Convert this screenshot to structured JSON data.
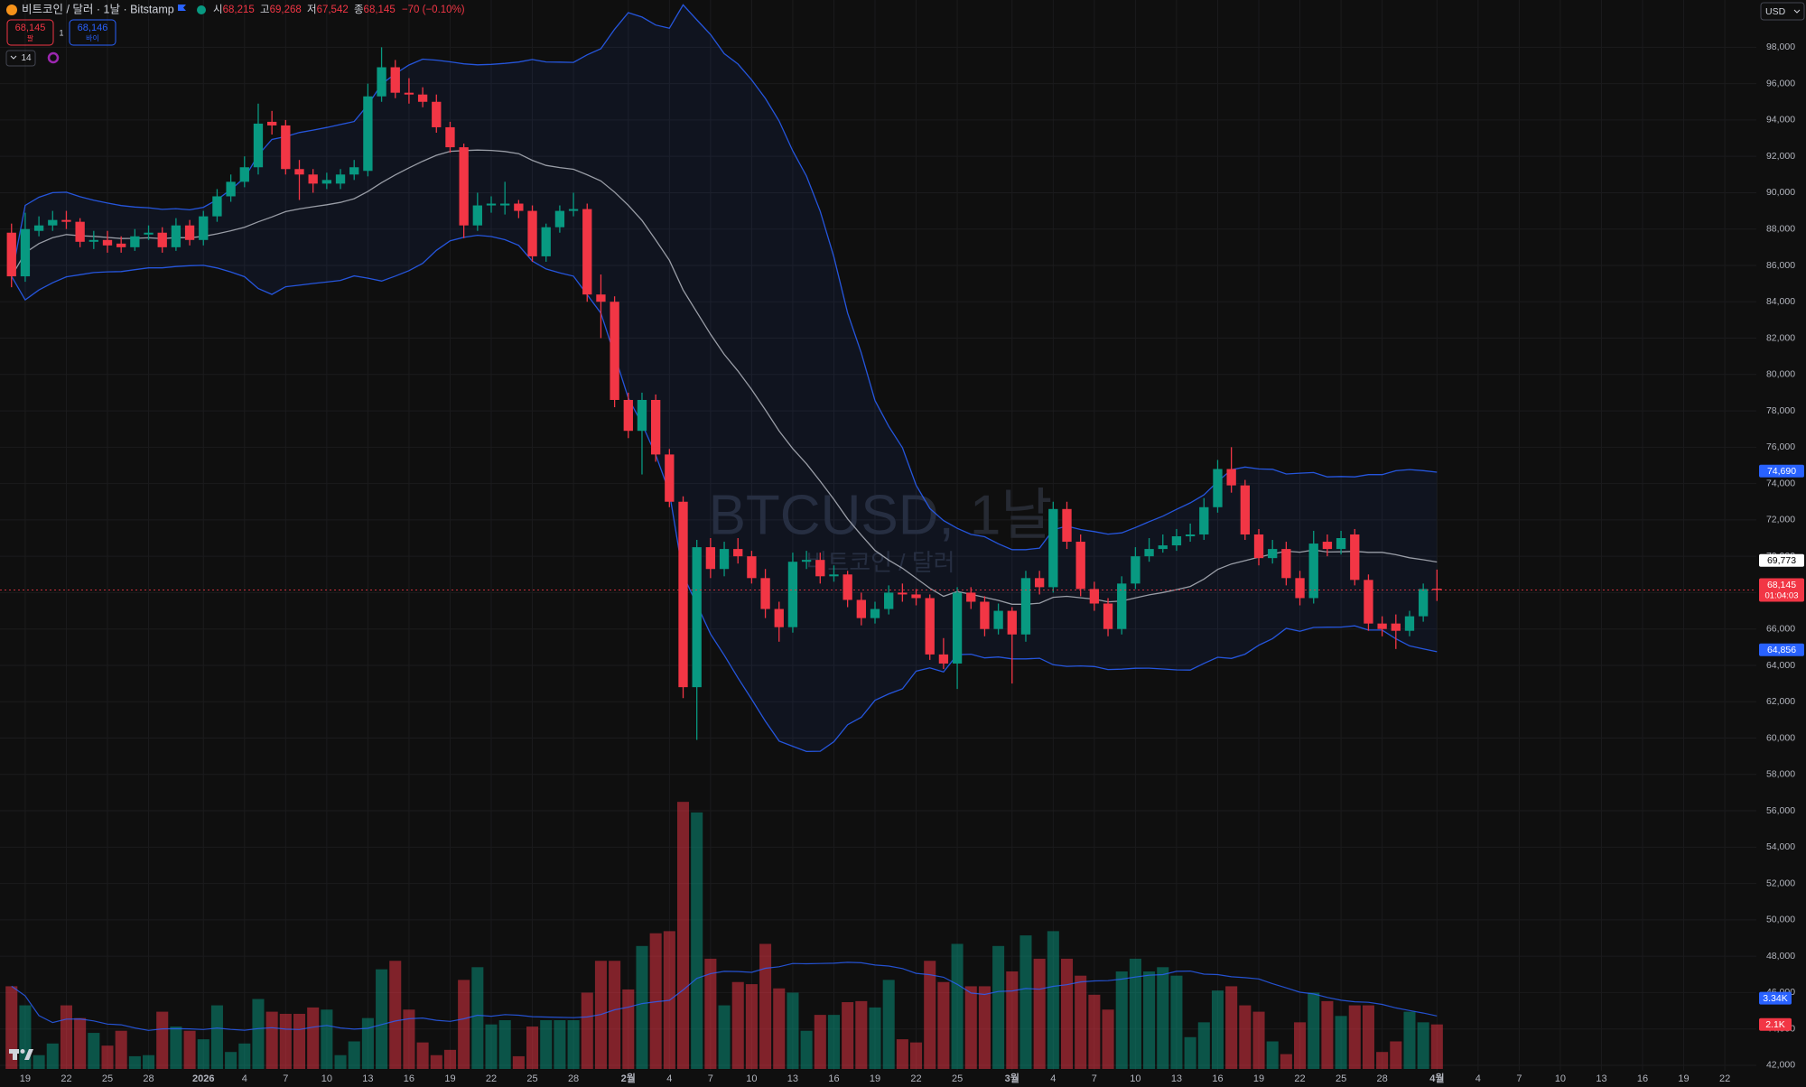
{
  "header": {
    "symbol": "비트코인 / 달러 · 1날 · Bitstamp",
    "ohlc": [
      {
        "key": "시",
        "value": "68,215"
      },
      {
        "key": "고",
        "value": "69,268"
      },
      {
        "key": "저",
        "value": "67,542"
      },
      {
        "key": "종",
        "value": "68,145"
      }
    ],
    "change": "−70 (−0.10%)",
    "sell": {
      "price": "68,145",
      "label": "팔"
    },
    "qty": "1",
    "buy": {
      "price": "68,146",
      "label": "바이"
    },
    "indicators": "14",
    "currency": "USD"
  },
  "watermark": {
    "title": "BTCUSD, 1날",
    "subtitle": "비트코인 / 달러"
  },
  "chart_data": {
    "type": "candlestick",
    "up_color": "#089981",
    "down_color": "#f23645",
    "grid": true,
    "x": [
      0,
      1,
      2,
      3,
      4,
      5,
      6,
      7,
      8,
      9,
      10,
      11,
      12,
      13,
      14,
      15,
      16,
      17,
      18,
      19,
      20,
      21,
      22,
      23,
      24,
      25,
      26,
      27,
      28,
      29,
      30,
      31,
      32,
      33,
      34,
      35,
      36,
      37,
      38,
      39,
      40,
      41,
      42,
      43,
      44,
      45,
      46,
      47,
      48,
      49,
      50,
      51,
      52,
      53,
      54,
      55,
      56,
      57,
      58,
      59,
      60,
      61,
      62,
      63,
      64,
      65,
      66,
      67,
      68,
      69,
      70,
      71,
      72,
      73,
      74,
      75,
      76,
      77,
      78,
      79,
      80,
      81,
      82,
      83,
      84,
      85,
      86,
      87,
      88,
      89,
      90,
      91,
      92,
      93,
      94,
      95,
      96,
      97,
      98,
      99,
      100,
      101,
      102,
      103,
      104
    ],
    "open": [
      87800,
      85400,
      87900,
      88200,
      88500,
      88400,
      87300,
      87400,
      87200,
      87000,
      87700,
      87800,
      87000,
      88200,
      87400,
      88700,
      89800,
      90600,
      91400,
      93900,
      93700,
      91300,
      91000,
      90500,
      90500,
      91000,
      91200,
      95300,
      96900,
      95500,
      95400,
      95000,
      93600,
      92500,
      88200,
      89300,
      89300,
      89400,
      89000,
      86500,
      88100,
      89000,
      89100,
      84400,
      84000,
      78600,
      76900,
      78600,
      75600,
      73000,
      62800,
      70500,
      69300,
      70400,
      70000,
      68800,
      67100,
      66100,
      69700,
      69800,
      68900,
      69000,
      67600,
      66600,
      67100,
      68000,
      67900,
      67700,
      64600,
      64100,
      68000,
      67500,
      66000,
      67000,
      65700,
      68800,
      68300,
      72600,
      70800,
      68200,
      67400,
      66000,
      68500,
      70000,
      70400,
      70600,
      71100,
      71200,
      72700,
      74800,
      73900,
      71200,
      69900,
      70400,
      68800,
      67700,
      70800,
      70400,
      71200,
      68700,
      66300,
      66300,
      65900,
      66700,
      68215
    ],
    "high": [
      88300,
      88900,
      88700,
      89000,
      89000,
      88600,
      87900,
      87900,
      87600,
      88000,
      88200,
      88100,
      88600,
      88500,
      89000,
      90200,
      91000,
      92000,
      94900,
      94500,
      94000,
      91800,
      91300,
      91100,
      91300,
      91800,
      96000,
      98000,
      97300,
      96300,
      95800,
      95400,
      93900,
      92700,
      90000,
      89800,
      90600,
      89600,
      89300,
      88300,
      89300,
      90000,
      89400,
      85500,
      84300,
      79000,
      79000,
      78900,
      75900,
      73300,
      70900,
      71000,
      70800,
      71000,
      70300,
      69300,
      67500,
      70200,
      70300,
      70200,
      69500,
      69200,
      68000,
      67500,
      68400,
      68500,
      68200,
      67900,
      65500,
      68300,
      68300,
      67800,
      67400,
      67200,
      69200,
      69200,
      73000,
      73000,
      71200,
      68600,
      67700,
      68900,
      70500,
      71000,
      71200,
      71500,
      71800,
      73200,
      75300,
      76000,
      74200,
      71500,
      70900,
      70800,
      69200,
      71400,
      71200,
      71400,
      71500,
      69000,
      66700,
      66800,
      67000,
      68500,
      69268
    ],
    "low": [
      84800,
      85100,
      87600,
      87900,
      88000,
      87000,
      86900,
      86700,
      86700,
      86800,
      87400,
      86700,
      86800,
      87100,
      87100,
      88400,
      89500,
      90300,
      91000,
      93200,
      91000,
      89600,
      90000,
      90200,
      90200,
      90700,
      90900,
      95000,
      95200,
      94900,
      94700,
      93300,
      92200,
      87500,
      87900,
      88900,
      88800,
      88600,
      86200,
      86200,
      87800,
      88700,
      84000,
      82000,
      78200,
      76500,
      74500,
      75200,
      72700,
      62200,
      59900,
      68800,
      68900,
      69600,
      68500,
      66600,
      65300,
      65800,
      69300,
      68500,
      68600,
      67200,
      66200,
      66300,
      66800,
      67500,
      67300,
      64300,
      63800,
      62700,
      67100,
      65600,
      65700,
      63000,
      65300,
      67900,
      68000,
      70400,
      67800,
      67000,
      65600,
      65700,
      68200,
      69700,
      70200,
      70300,
      70800,
      70900,
      72400,
      73500,
      70900,
      69500,
      69600,
      68400,
      67300,
      67400,
      70000,
      70100,
      68400,
      65900,
      65600,
      64900,
      65600,
      66400,
      67542
    ],
    "close": [
      85400,
      88000,
      88200,
      88500,
      88400,
      87300,
      87400,
      87100,
      87000,
      87600,
      87800,
      87000,
      88200,
      87400,
      88700,
      89800,
      90600,
      91400,
      93800,
      93700,
      91300,
      91000,
      90500,
      90700,
      91000,
      91400,
      95300,
      96900,
      95500,
      95400,
      95000,
      93600,
      92500,
      88200,
      89300,
      89400,
      89400,
      89000,
      86500,
      88100,
      89000,
      89100,
      84400,
      84000,
      78600,
      76900,
      78600,
      75600,
      73000,
      62800,
      70500,
      69300,
      70400,
      70000,
      68800,
      67100,
      66100,
      69700,
      69800,
      68900,
      69000,
      67600,
      66600,
      67100,
      68000,
      67900,
      67700,
      64600,
      64100,
      68000,
      67500,
      66000,
      67000,
      65700,
      68800,
      68300,
      72600,
      70800,
      68200,
      67400,
      66000,
      68500,
      70000,
      70400,
      70600,
      71100,
      71200,
      72700,
      74800,
      73900,
      71200,
      69900,
      70400,
      68800,
      67700,
      70700,
      70400,
      71000,
      68700,
      66300,
      66000,
      65900,
      66700,
      68200,
      68145
    ],
    "xlim": [
      -0.84,
      127.3
    ],
    "xticks": [
      {
        "value": 1,
        "label": "19"
      },
      {
        "value": 4,
        "label": "22"
      },
      {
        "value": 7,
        "label": "25"
      },
      {
        "value": 10,
        "label": "28"
      },
      {
        "value": 14,
        "label": "2026"
      },
      {
        "value": 17,
        "label": "4"
      },
      {
        "value": 20,
        "label": "7"
      },
      {
        "value": 23,
        "label": "10"
      },
      {
        "value": 26,
        "label": "13"
      },
      {
        "value": 29,
        "label": "16"
      },
      {
        "value": 32,
        "label": "19"
      },
      {
        "value": 35,
        "label": "22"
      },
      {
        "value": 38,
        "label": "25"
      },
      {
        "value": 41,
        "label": "28"
      },
      {
        "value": 45,
        "label": "2월"
      },
      {
        "value": 48,
        "label": "4"
      },
      {
        "value": 51,
        "label": "7"
      },
      {
        "value": 54,
        "label": "10"
      },
      {
        "value": 57,
        "label": "13"
      },
      {
        "value": 60,
        "label": "16"
      },
      {
        "value": 63,
        "label": "19"
      },
      {
        "value": 66,
        "label": "22"
      },
      {
        "value": 69,
        "label": "25"
      },
      {
        "value": 73,
        "label": "3월"
      },
      {
        "value": 76,
        "label": "4"
      },
      {
        "value": 79,
        "label": "7"
      },
      {
        "value": 82,
        "label": "10"
      },
      {
        "value": 85,
        "label": "13"
      },
      {
        "value": 88,
        "label": "16"
      },
      {
        "value": 91,
        "label": "19"
      },
      {
        "value": 94,
        "label": "22"
      },
      {
        "value": 97,
        "label": "25"
      },
      {
        "value": 100,
        "label": "28"
      },
      {
        "value": 104,
        "label": "4월"
      },
      {
        "value": 107,
        "label": "4"
      },
      {
        "value": 110,
        "label": "7"
      },
      {
        "value": 113,
        "label": "10"
      },
      {
        "value": 116,
        "label": "13"
      },
      {
        "value": 119,
        "label": "16"
      },
      {
        "value": 122,
        "label": "19"
      },
      {
        "value": 125,
        "label": "22"
      }
    ],
    "ylim": [
      41700,
      100600
    ],
    "yticks": [
      {
        "value": 42000,
        "label": "42,000"
      },
      {
        "value": 44000,
        "label": "44,000"
      },
      {
        "value": 46000,
        "label": "46,000"
      },
      {
        "value": 48000,
        "label": "48,000"
      },
      {
        "value": 50000,
        "label": "50,000"
      },
      {
        "value": 52000,
        "label": "52,000"
      },
      {
        "value": 54000,
        "label": "54,000"
      },
      {
        "value": 56000,
        "label": "56,000"
      },
      {
        "value": 58000,
        "label": "58,000"
      },
      {
        "value": 60000,
        "label": "60,000"
      },
      {
        "value": 62000,
        "label": "62,000"
      },
      {
        "value": 64000,
        "label": "64,000"
      },
      {
        "value": 66000,
        "label": "66,000"
      },
      {
        "value": 68000,
        "label": "68,000"
      },
      {
        "value": 70000,
        "label": "70,000"
      },
      {
        "value": 72000,
        "label": "72,000"
      },
      {
        "value": 74000,
        "label": "74,000"
      },
      {
        "value": 76000,
        "label": "76,000"
      },
      {
        "value": 78000,
        "label": "78,000"
      },
      {
        "value": 80000,
        "label": "80,000"
      },
      {
        "value": 82000,
        "label": "82,000"
      },
      {
        "value": 84000,
        "label": "84,000"
      },
      {
        "value": 86000,
        "label": "86,000"
      },
      {
        "value": 88000,
        "label": "88,000"
      },
      {
        "value": 90000,
        "label": "90,000"
      },
      {
        "value": 92000,
        "label": "92,000"
      },
      {
        "value": 94000,
        "label": "94,000"
      },
      {
        "value": 96000,
        "label": "96,000"
      },
      {
        "value": 98000,
        "label": "98,000"
      }
    ],
    "price_labels": [
      {
        "value": 74690,
        "label": "74,690",
        "color": "#2962ff"
      },
      {
        "value": 69773,
        "label": "69,773",
        "color": "#ffffff"
      },
      {
        "value": 64856,
        "label": "64,856",
        "color": "#2962ff"
      }
    ],
    "current_price": {
      "value": 68145,
      "label": "68,145",
      "countdown": "01:04:03",
      "color": "#f23645"
    },
    "volume": {
      "ylim": [
        0,
        50
      ],
      "values": [
        3.9,
        3.0,
        0.65,
        1.2,
        3.0,
        2.4,
        1.7,
        1.1,
        1.8,
        0.6,
        0.65,
        2.7,
        2.0,
        1.8,
        1.4,
        3.0,
        0.8,
        1.2,
        3.3,
        2.7,
        2.6,
        2.6,
        2.9,
        2.8,
        0.65,
        1.3,
        2.4,
        4.7,
        5.1,
        2.8,
        1.25,
        0.65,
        0.9,
        4.2,
        4.8,
        2.1,
        2.3,
        0.6,
        2.0,
        2.3,
        2.3,
        2.3,
        3.6,
        5.1,
        5.1,
        3.75,
        5.8,
        6.4,
        6.5,
        12.6,
        12.1,
        5.2,
        3.0,
        4.1,
        4.0,
        5.9,
        3.8,
        3.6,
        1.8,
        2.55,
        2.55,
        3.15,
        3.2,
        2.9,
        4.2,
        1.4,
        1.25,
        5.1,
        4.1,
        5.9,
        3.9,
        3.9,
        5.8,
        4.6,
        6.3,
        5.2,
        6.5,
        5.2,
        4.4,
        3.5,
        2.8,
        4.6,
        5.2,
        4.6,
        4.8,
        4.4,
        1.5,
        2.2,
        3.7,
        3.9,
        3.0,
        2.7,
        1.3,
        0.7,
        2.2,
        3.6,
        3.2,
        2.5,
        3.0,
        3.0,
        0.8,
        1.3,
        2.7,
        2.2,
        2.1
      ],
      "labels": [
        {
          "value": 3.34,
          "label": "3.34K",
          "color": "#2962ff"
        },
        {
          "value": 2.1,
          "label": "2.1K",
          "color": "#f23645"
        }
      ]
    }
  }
}
